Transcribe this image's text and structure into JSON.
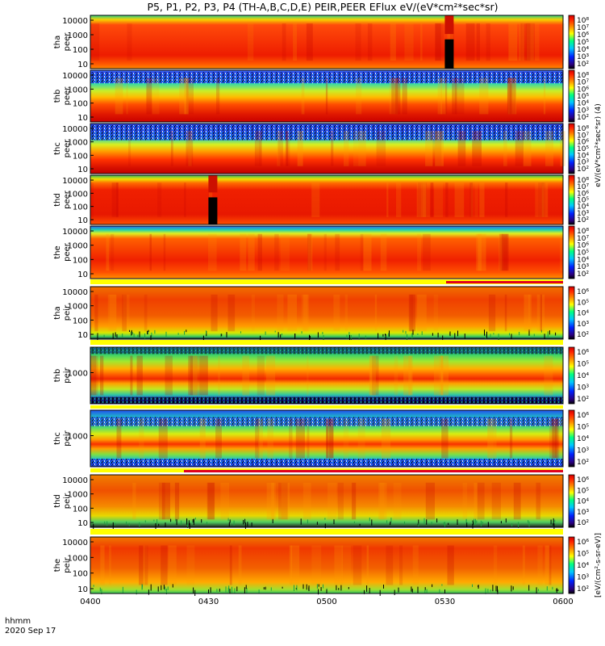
{
  "chart_data": {
    "type": "heatmap",
    "title": "P5, P1, P2, P3, P4 (TH-A,B,C,D,E) PEIR,PEER EFlux eV/(eV*cm²*sec*sr)",
    "time_label": "hhmm",
    "date_label": "2020 Sep 17",
    "x_ticks": [
      "0400",
      "0430",
      "0500",
      "0530",
      "0600"
    ],
    "x_range": [
      "04:00",
      "06:00"
    ],
    "colorscale": [
      "#000000",
      "#2b0080",
      "#0020ff",
      "#00c8ff",
      "#00ff80",
      "#ffff00",
      "#ff8000",
      "#ff2000",
      "#d00000"
    ],
    "colorbar_ticks_sci": [
      "10⁸",
      "10⁷",
      "10⁶",
      "10⁵",
      "10⁴",
      "10³",
      "10²"
    ],
    "colorbar_ticks_ion": [
      "10⁶",
      "10⁵",
      "10⁴",
      "10³",
      "10²"
    ],
    "colorbar_label_electron": "eV/(eV*cm²*sec*sr) (4)",
    "colorbar_label_ion": "[eV/(cm²-s-sr-eV)]",
    "panels": [
      {
        "probe": "tha",
        "species": "peer",
        "ylabel": "tha",
        "ylabel2": "peer",
        "yticks": [
          "10000",
          "1000",
          "100",
          "10"
        ]
      },
      {
        "probe": "thb",
        "species": "peer",
        "ylabel": "thb",
        "ylabel2": "peer",
        "yticks": [
          "10000",
          "1000",
          "100",
          "10"
        ]
      },
      {
        "probe": "thc",
        "species": "peer",
        "ylabel": "thc",
        "ylabel2": "peer",
        "yticks": [
          "10000",
          "1000",
          "100",
          "10"
        ]
      },
      {
        "probe": "thd",
        "species": "peer",
        "ylabel": "thd",
        "ylabel2": "peer",
        "yticks": [
          "10000",
          "1000",
          "100",
          "10"
        ]
      },
      {
        "probe": "the",
        "species": "peer",
        "ylabel": "the",
        "ylabel2": "peer",
        "yticks": [
          "10000",
          "1000",
          "100",
          "10"
        ]
      },
      {
        "probe": "tha",
        "species": "peir",
        "ylabel": "tha",
        "ylabel2": "peir",
        "yticks": [
          "10000",
          "1000",
          "100",
          "10"
        ]
      },
      {
        "probe": "thb",
        "species": "peir",
        "ylabel": "thb",
        "ylabel2": "peir",
        "yticks": [
          "1000"
        ]
      },
      {
        "probe": "thc",
        "species": "peir",
        "ylabel": "thc",
        "ylabel2": "peir",
        "yticks": [
          "1000"
        ]
      },
      {
        "probe": "thd",
        "species": "peir",
        "ylabel": "thd",
        "ylabel2": "peir",
        "yticks": [
          "10000",
          "1000",
          "100",
          "10"
        ]
      },
      {
        "probe": "the",
        "species": "peir",
        "ylabel": "the",
        "ylabel2": "peir",
        "yticks": [
          "10000",
          "1000",
          "100",
          "10"
        ]
      }
    ],
    "events": [
      {
        "panel": "tha peer",
        "type": "data gap",
        "time": "05:31"
      },
      {
        "panel": "thd peer",
        "type": "data gap",
        "time": "04:31"
      }
    ]
  }
}
